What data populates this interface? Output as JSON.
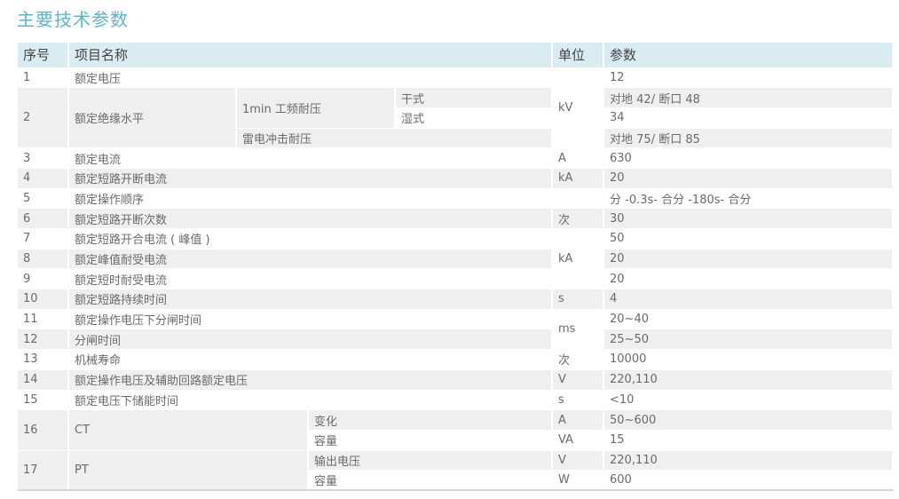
{
  "title": "主要技术参数",
  "header": {
    "seq": "序号",
    "name": "项目名称",
    "unit": "单位",
    "param": "参数"
  },
  "rows": {
    "r1": {
      "seq": "1",
      "name": "额定电压",
      "param": "12"
    },
    "r2": {
      "seq": "2",
      "name": "额定绝缘水平",
      "sub1": "1min 工频耐压",
      "dry": "干式",
      "wet": "湿式",
      "sub2": "雷电冲击耐压",
      "unit": "kV",
      "p_dry": "对地 42/ 断口 48",
      "p_wet": "34",
      "p_sub2": "对地 75/ 断口 85"
    },
    "r3": {
      "seq": "3",
      "name": "额定电流",
      "unit": "A",
      "param": "630"
    },
    "r4": {
      "seq": "4",
      "name": "额定短路开断电流",
      "unit": "kA",
      "param": "20"
    },
    "r5": {
      "seq": "5",
      "name": "额定操作顺序",
      "unit": "",
      "param": "分 -0.3s- 合分 -180s- 合分"
    },
    "r6": {
      "seq": "6",
      "name": "额定短路开断次数",
      "unit": "次",
      "param": "30"
    },
    "r7": {
      "seq": "7",
      "name": "额定短路开合电流 ( 峰值 )",
      "unit": "kA",
      "param": "50"
    },
    "r8": {
      "seq": "8",
      "name": "额定峰值耐受电流",
      "param": "20"
    },
    "r9": {
      "seq": "9",
      "name": "额定短时耐受电流",
      "param": "20"
    },
    "r10": {
      "seq": "10",
      "name": "额定短路持续时间",
      "unit": "s",
      "param": "4"
    },
    "r11": {
      "seq": "11",
      "name": "额定操作电压下分闸时间",
      "unit": "ms",
      "param": "20~40"
    },
    "r12": {
      "seq": "12",
      "name": "分闸时间",
      "param": "25~50"
    },
    "r13": {
      "seq": "13",
      "name": "机械寿命",
      "unit": "次",
      "param": "10000"
    },
    "r14": {
      "seq": "14",
      "name": "额定操作电压及辅助回路额定电压",
      "unit": "V",
      "param": "220,110"
    },
    "r15": {
      "seq": "15",
      "name": "额定电压下储能时间",
      "unit": "s",
      "param": "<10"
    },
    "r16": {
      "seq": "16",
      "name": "CT",
      "a": "变化",
      "a_unit": "A",
      "a_param": "50~600",
      "b": "容量",
      "b_unit": "VA",
      "b_param": "15"
    },
    "r17": {
      "seq": "17",
      "name": "PT",
      "a": "输出电压",
      "a_unit": "V",
      "a_param": "220,110",
      "b": "容量",
      "b_unit": "W",
      "b_param": "600"
    }
  }
}
